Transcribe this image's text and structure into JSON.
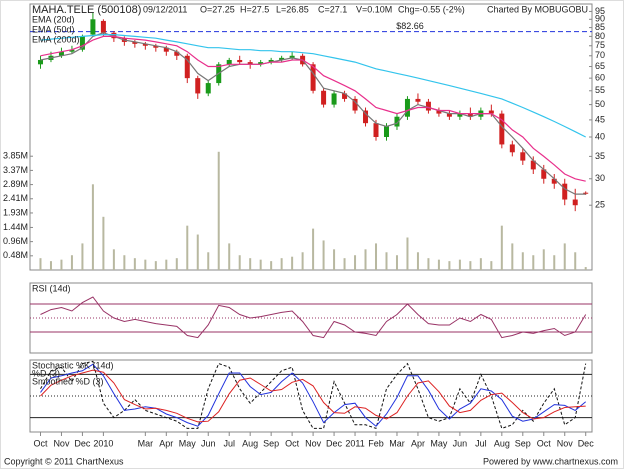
{
  "chart_data": [
    {
      "type": "candlestick",
      "title": "MAHA.TELE (500108)",
      "info": [
        "09/12/2011",
        "O=27.25",
        "H=27.5",
        "L=26.85",
        "C=27.1",
        "V=0.10M",
        "Chg=-0.55 (-2%)"
      ],
      "credit": "Charted By MOBUGOBU",
      "x": [
        0,
        0.5,
        1,
        1.5,
        2,
        2.5,
        3,
        3.5,
        4,
        4.5,
        5,
        5.5,
        6,
        6.5,
        7,
        7.5,
        8,
        8.5,
        9,
        9.5,
        10,
        10.5,
        11,
        11.5,
        12,
        12.5,
        13,
        13.5,
        14,
        14.5,
        15,
        15.5,
        16,
        16.5,
        17,
        17.5,
        18,
        18.5,
        19,
        19.5,
        20,
        20.5,
        21,
        21.5,
        22,
        22.5,
        23,
        23.5,
        24,
        24.5,
        25,
        25.5,
        26
      ],
      "xlim": [
        -0.5,
        26.3
      ],
      "open": [
        66,
        68,
        70,
        72,
        73,
        81,
        89,
        82,
        79,
        77,
        76,
        75,
        74,
        72,
        70,
        60,
        54,
        58,
        66,
        68,
        67,
        66,
        67,
        68,
        69,
        70,
        66,
        55,
        50,
        54,
        52,
        48,
        44,
        40,
        43,
        46,
        52,
        51,
        48,
        47,
        46,
        47,
        46,
        48,
        47,
        38,
        36,
        34,
        32,
        30,
        29,
        26,
        27.25
      ],
      "high": [
        70,
        72,
        74,
        75,
        81,
        94,
        90,
        83,
        80,
        78,
        77,
        76,
        75,
        73,
        71,
        61,
        59,
        67,
        69,
        70,
        68,
        68,
        69,
        70,
        72,
        71,
        67,
        56,
        55,
        55,
        53,
        49,
        45,
        44,
        47,
        53,
        54,
        52,
        49,
        48,
        48,
        49,
        49,
        50,
        48,
        39,
        37,
        35,
        33,
        31,
        30,
        28,
        27.5
      ],
      "low": [
        64,
        67,
        69,
        71,
        72,
        80,
        80,
        77,
        75,
        74,
        73,
        72,
        70,
        68,
        58,
        52,
        53,
        57,
        65,
        66,
        64,
        65,
        66,
        67,
        68,
        65,
        54,
        49,
        49,
        51,
        47,
        43,
        39,
        39,
        42,
        45,
        50,
        47,
        46,
        45,
        45,
        45,
        45,
        46,
        37,
        35,
        33,
        31,
        29,
        28,
        25,
        24,
        26.85
      ],
      "close": [
        68,
        70,
        72,
        73,
        80,
        90,
        82,
        79,
        77,
        76,
        75,
        74,
        72,
        70,
        60,
        54,
        58,
        66,
        68,
        67,
        66,
        67,
        68,
        69,
        70,
        66,
        55,
        50,
        54,
        52,
        48,
        44,
        40,
        43,
        46,
        52,
        51,
        48,
        47,
        46,
        47,
        46,
        48,
        47,
        38,
        36,
        34,
        32,
        30,
        29,
        26,
        25,
        27.1
      ],
      "up_color": "#1a9a1a",
      "down_color": "#d02020",
      "ylim": [
        16,
        100
      ],
      "log_scale": true,
      "yticks": [
        25,
        30,
        35,
        40,
        45,
        50,
        55,
        60,
        65,
        70,
        75,
        80,
        85,
        90,
        95
      ],
      "series": [
        {
          "name": "EMA (20d)",
          "color": "#777777",
          "values": [
            68,
            69,
            70,
            71,
            74,
            80,
            82,
            80,
            78,
            77,
            76,
            75,
            74,
            72,
            68,
            62,
            59,
            62,
            65,
            66,
            66,
            66,
            67,
            68,
            69,
            68,
            62,
            56,
            55,
            54,
            51,
            47,
            44,
            43,
            44,
            48,
            50,
            49,
            48,
            47,
            47,
            46,
            47,
            47,
            43,
            40,
            37,
            34,
            32,
            30,
            28,
            27,
            27
          ]
        },
        {
          "name": "EMA (50d)",
          "color": "#e8308c",
          "values": [
            70,
            71,
            72,
            73,
            75,
            78,
            80,
            80,
            79,
            78.5,
            78,
            77,
            76,
            75,
            72,
            68,
            65,
            65,
            66,
            66,
            66,
            66,
            67,
            67,
            68,
            68,
            65,
            61,
            59,
            57,
            55,
            52,
            49,
            48,
            47,
            48,
            49,
            49,
            48,
            48,
            47,
            47,
            47,
            47,
            45,
            42,
            40,
            37,
            35,
            33,
            31,
            30,
            29.5
          ]
        },
        {
          "name": "EMA (200d)",
          "color": "#33c4ec",
          "values": [
            78,
            78.5,
            79,
            79.5,
            80,
            80.5,
            81,
            81,
            80.5,
            80,
            79.5,
            79,
            78,
            77,
            76,
            75,
            74,
            74,
            73.5,
            73,
            73,
            72.5,
            72.5,
            72,
            72,
            71.5,
            71,
            70,
            69,
            68,
            67,
            65.5,
            64,
            63,
            62,
            61,
            60,
            59,
            58,
            57,
            56,
            55,
            54,
            53,
            52,
            50.5,
            49,
            47.5,
            46,
            44.5,
            43,
            41.5,
            40
          ]
        }
      ],
      "annotation": {
        "label": "$82.66",
        "value": 82.66,
        "color": "#2233dd"
      },
      "volume": {
        "color": "#b8b8a0",
        "values": [
          400000,
          300000,
          350000,
          500000,
          900000,
          2900000,
          1800000,
          700000,
          500000,
          400000,
          350000,
          300000,
          350000,
          400000,
          1500000,
          1200000,
          600000,
          4000000,
          900000,
          500000,
          400000,
          350000,
          300000,
          400000,
          450000,
          600000,
          1400000,
          1000000,
          700000,
          400000,
          500000,
          700000,
          900000,
          600000,
          500000,
          1100000,
          600000,
          400000,
          350000,
          300000,
          350000,
          300000,
          400000,
          300000,
          1500000,
          900000,
          600000,
          500000,
          700000,
          500000,
          900000,
          600000,
          100000
        ],
        "ylim": [
          0,
          9000000
        ],
        "yticks": [
          {
            "value": 480000,
            "label": "0.48M"
          },
          {
            "value": 960000,
            "label": "0.96M"
          },
          {
            "value": 1440000,
            "label": "1.44M"
          },
          {
            "value": 1930000,
            "label": "1.93M"
          },
          {
            "value": 2410000,
            "label": "2.41M"
          },
          {
            "value": 2890000,
            "label": "2.89M"
          },
          {
            "value": 3370000,
            "label": "3.37M"
          },
          {
            "value": 3850000,
            "label": "3.85M"
          }
        ]
      }
    },
    {
      "type": "line",
      "ylim": [
        0,
        100
      ],
      "hlines": [
        30,
        70
      ],
      "midline": 50,
      "line_color": "#993366",
      "series": [
        {
          "name": "RSI (14d)",
          "color": "#993366",
          "values": [
            55,
            62,
            65,
            60,
            72,
            80,
            60,
            50,
            45,
            48,
            45,
            42,
            40,
            38,
            25,
            22,
            40,
            68,
            65,
            55,
            50,
            52,
            55,
            58,
            60,
            45,
            25,
            22,
            45,
            40,
            30,
            28,
            25,
            45,
            55,
            70,
            55,
            42,
            40,
            40,
            50,
            45,
            55,
            48,
            22,
            25,
            30,
            28,
            32,
            35,
            25,
            30,
            55
          ]
        }
      ]
    },
    {
      "type": "line",
      "ylim": [
        0,
        100
      ],
      "hlines": [
        20,
        80
      ],
      "midline": 50,
      "line_color": "#222222",
      "series": [
        {
          "name": "Stochastic %K (14d)",
          "color": "#111111",
          "dashed": true,
          "values": [
            60,
            85,
            90,
            70,
            95,
            98,
            40,
            20,
            30,
            45,
            30,
            25,
            20,
            15,
            5,
            5,
            60,
            95,
            90,
            60,
            40,
            55,
            70,
            85,
            90,
            30,
            5,
            5,
            70,
            40,
            10,
            10,
            5,
            60,
            80,
            95,
            60,
            20,
            15,
            20,
            60,
            40,
            80,
            50,
            5,
            10,
            30,
            15,
            40,
            60,
            10,
            20,
            95
          ]
        },
        {
          "name": "%D (3)",
          "color": "#2233dd",
          "values": [
            55,
            75,
            78,
            82,
            85,
            94,
            78,
            53,
            30,
            32,
            35,
            33,
            25,
            20,
            13,
            8,
            23,
            53,
            82,
            82,
            63,
            52,
            55,
            70,
            82,
            68,
            42,
            13,
            27,
            38,
            40,
            20,
            8,
            25,
            48,
            78,
            78,
            58,
            32,
            18,
            32,
            40,
            60,
            57,
            45,
            22,
            15,
            18,
            28,
            38,
            37,
            30,
            42
          ]
        },
        {
          "name": "Smoothed %D (3)",
          "color": "#dd2222",
          "values": [
            50,
            65,
            72,
            78,
            82,
            86,
            83,
            68,
            45,
            38,
            32,
            33,
            30,
            26,
            19,
            14,
            15,
            28,
            53,
            72,
            75,
            66,
            57,
            59,
            69,
            73,
            64,
            41,
            27,
            26,
            35,
            33,
            23,
            18,
            27,
            50,
            68,
            71,
            56,
            36,
            27,
            30,
            44,
            52,
            54,
            41,
            27,
            18,
            20,
            28,
            34,
            35,
            36
          ]
        }
      ],
      "xticks": [
        {
          "value": 0,
          "label": "Oct"
        },
        {
          "value": 1,
          "label": "Nov"
        },
        {
          "value": 2,
          "label": "Dec"
        },
        {
          "value": 3,
          "label": "2010"
        },
        {
          "value": 5,
          "label": "Mar"
        },
        {
          "value": 6,
          "label": "Apr"
        },
        {
          "value": 7,
          "label": "May"
        },
        {
          "value": 8,
          "label": "Jun"
        },
        {
          "value": 9,
          "label": "Jul"
        },
        {
          "value": 10,
          "label": "Aug"
        },
        {
          "value": 11,
          "label": "Sep"
        },
        {
          "value": 12,
          "label": "Oct"
        },
        {
          "value": 13,
          "label": "Nov"
        },
        {
          "value": 14,
          "label": "Dec"
        },
        {
          "value": 15,
          "label": "2011"
        },
        {
          "value": 16,
          "label": "Feb"
        },
        {
          "value": 17,
          "label": "Mar"
        },
        {
          "value": 18,
          "label": "Apr"
        },
        {
          "value": 19,
          "label": "May"
        },
        {
          "value": 20,
          "label": "Jun"
        },
        {
          "value": 21,
          "label": "Jul"
        },
        {
          "value": 22,
          "label": "Aug"
        },
        {
          "value": 23,
          "label": "Sep"
        },
        {
          "value": 24,
          "label": "Oct"
        },
        {
          "value": 25,
          "label": "Nov"
        },
        {
          "value": 26,
          "label": "Dec"
        }
      ]
    }
  ],
  "footer": {
    "left": "Copyright © 2011 ChartNexus",
    "right": "Powered by www.chartnexus.com"
  }
}
